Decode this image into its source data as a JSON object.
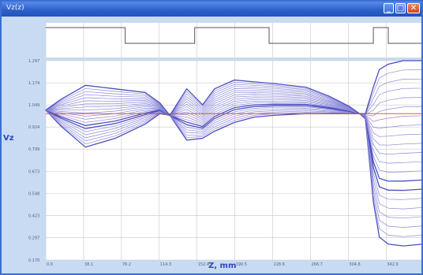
{
  "window": {
    "title": "Vz(z)",
    "min_glyph": "_",
    "max_glyph": "□",
    "close_glyph": "✕"
  },
  "colors": {
    "accent": "#2b48c0",
    "curve": "#4a4fc0",
    "curve_light": "#8a88d8",
    "reference": "#d2452a",
    "grid": "#c8c8c8",
    "frame": "#c9daf3"
  },
  "chart_data": {
    "type": "line",
    "title": "",
    "xlabel": "Z, mm",
    "ylabel": "Vz",
    "xlim": [
      0,
      380
    ],
    "ylim": [
      0.17,
      1.3
    ],
    "x_ticks": [
      {
        "value": 0,
        "label": "0.0"
      },
      {
        "value": 38.1,
        "label": "38.1"
      },
      {
        "value": 76.2,
        "label": "76.2"
      },
      {
        "value": 114.3,
        "label": "114.3"
      },
      {
        "value": 152.4,
        "label": "152.4"
      },
      {
        "value": 190.5,
        "label": "190.5"
      },
      {
        "value": 228.6,
        "label": "228.6"
      },
      {
        "value": 266.7,
        "label": "266.7"
      },
      {
        "value": 304.8,
        "label": "304.8"
      },
      {
        "value": 342.9,
        "label": "342.9"
      }
    ],
    "y_ticks": [
      {
        "value": 1.3,
        "label": "1.297"
      },
      {
        "value": 1.174,
        "label": "1.174"
      },
      {
        "value": 1.049,
        "label": "1.049"
      },
      {
        "value": 0.924,
        "label": "0.924"
      },
      {
        "value": 0.799,
        "label": "0.799"
      },
      {
        "value": 0.673,
        "label": "0.673"
      },
      {
        "value": 0.548,
        "label": "0.548"
      },
      {
        "value": 0.423,
        "label": "0.423"
      },
      {
        "value": 0.297,
        "label": "0.297"
      },
      {
        "value": 0.17,
        "label": "0.170"
      }
    ],
    "reference_line": 1.0,
    "gate_trace": {
      "x": [
        0,
        80,
        80,
        150,
        150,
        225,
        225,
        330,
        330,
        345,
        345,
        380
      ],
      "level": [
        1,
        1,
        0,
        0,
        1,
        1,
        0,
        0,
        1,
        1,
        0,
        0
      ]
    },
    "family": {
      "count": 21,
      "x": [
        0,
        15,
        40,
        70,
        100,
        115,
        125,
        142,
        158,
        170,
        190,
        210,
        230,
        262,
        285,
        306,
        316,
        322,
        330,
        336,
        345,
        360,
        380
      ],
      "series_low": [
        1.02,
        0.93,
        0.81,
        0.86,
        0.94,
        1.0,
        0.99,
        0.85,
        0.86,
        0.9,
        0.95,
        0.98,
        0.99,
        1.0,
        1.0,
        1.0,
        1.0,
        0.97,
        0.5,
        0.3,
        0.26,
        0.25,
        0.26
      ],
      "series_high": [
        1.02,
        1.08,
        1.16,
        1.14,
        1.12,
        1.06,
        0.99,
        1.14,
        1.05,
        1.14,
        1.19,
        1.18,
        1.17,
        1.15,
        1.1,
        1.04,
        1.0,
        1.0,
        1.15,
        1.25,
        1.28,
        1.3,
        1.3
      ]
    }
  }
}
